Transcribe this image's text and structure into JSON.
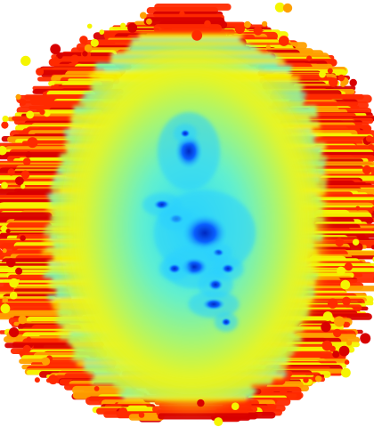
{
  "image": {
    "kind": "scientific-visualization",
    "subject": "density-shaded-blob",
    "colormap": "jet",
    "background": "#ffffff",
    "palette": {
      "core": "#0a5cff",
      "core_dark": "#0030c8",
      "inner": "#2ad0ff",
      "mid": "#6ff5c0",
      "mid2": "#b8f560",
      "outer": "#f5f500",
      "edge_orange": "#ffa000",
      "edge_red": "#ff2a00",
      "edge_dark": "#d80000"
    }
  }
}
